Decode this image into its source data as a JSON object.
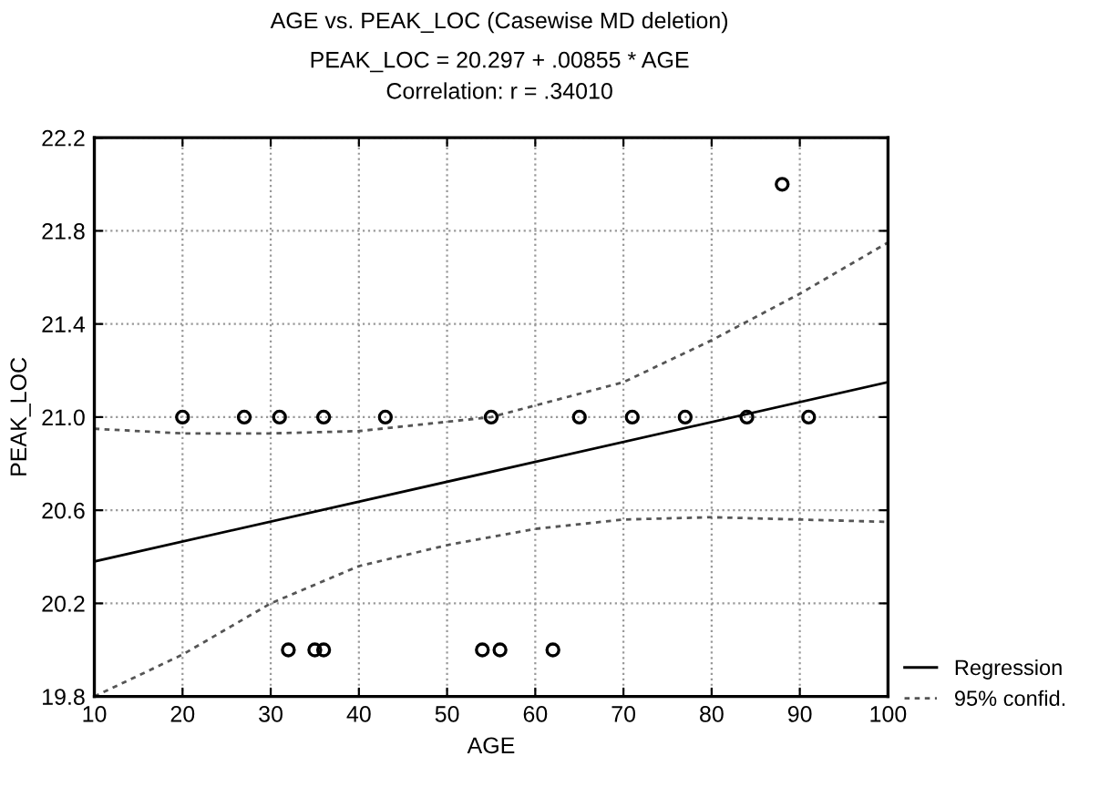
{
  "chart_data": {
    "type": "scatter",
    "title": "AGE vs. PEAK_LOC (Casewise MD deletion)",
    "subtitle": "PEAK_LOC = 20.297 + .00855 * AGE\nCorrelation: r = .34010",
    "xlabel": "AGE",
    "ylabel": "PEAK_LOC",
    "xlim": [
      10,
      100
    ],
    "xticks": [
      10,
      20,
      30,
      40,
      50,
      60,
      70,
      80,
      90,
      100
    ],
    "ylim": [
      19.8,
      22.2
    ],
    "yticks": [
      {
        "value": 19.8,
        "label": "19.8"
      },
      {
        "value": 20.2,
        "label": "20.2"
      },
      {
        "value": 20.6,
        "label": "20.6"
      },
      {
        "value": 21.0,
        "label": "21.0"
      },
      {
        "value": 21.4,
        "label": "21.4"
      },
      {
        "value": 21.8,
        "label": "21.8"
      },
      {
        "value": 22.2,
        "label": "22.2"
      }
    ],
    "grid": true,
    "legend": "bottom right",
    "series": [
      {
        "color": "#000000",
        "marker": "circle",
        "x": [
          20,
          27,
          31,
          36,
          43,
          55,
          65,
          71,
          77,
          84,
          91,
          32,
          35,
          36,
          54,
          56,
          62,
          88
        ],
        "values": [
          21.0,
          21.0,
          21.0,
          21.0,
          21.0,
          21.0,
          21.0,
          21.0,
          21.0,
          21.0,
          21.0,
          20.0,
          20.0,
          20.0,
          20.0,
          20.0,
          20.0,
          22.0
        ]
      },
      {
        "type": "line",
        "name": "Regression",
        "color": "#000000",
        "line_style": "solid",
        "x": [
          10,
          100
        ],
        "values": [
          20.38,
          21.15
        ]
      },
      {
        "type": "line",
        "name": "95% confid.",
        "color": "#555555",
        "line_style": "dashed",
        "x": [
          10,
          20,
          30,
          40,
          50,
          55,
          60,
          70,
          80,
          90,
          100
        ],
        "values": [
          20.95,
          20.93,
          20.93,
          20.94,
          20.98,
          21.0,
          21.05,
          21.15,
          21.33,
          21.53,
          21.75
        ]
      },
      {
        "type": "line",
        "color": "#555555",
        "line_style": "dashed",
        "x": [
          10,
          20,
          30,
          40,
          50,
          60,
          70,
          80,
          90,
          100
        ],
        "values": [
          19.8,
          19.98,
          20.2,
          20.36,
          20.45,
          20.52,
          20.56,
          20.57,
          20.56,
          20.55
        ]
      }
    ]
  }
}
